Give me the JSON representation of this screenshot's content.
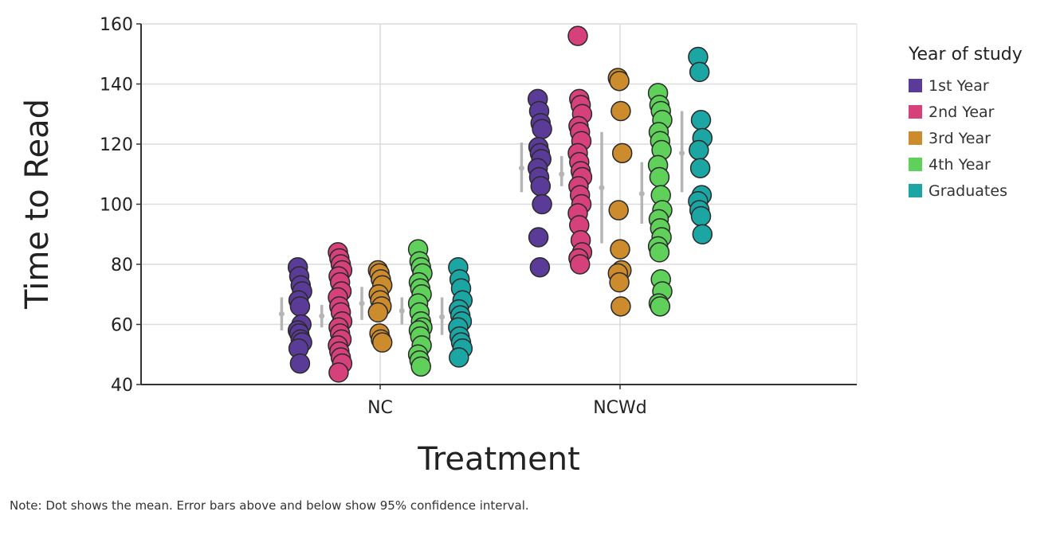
{
  "chart_data": {
    "type": "scatter",
    "subtype": "categorical strip plot with mean and 95% CI error bars",
    "xlabel": "Treatment",
    "ylabel": "Time to Read",
    "categories": [
      "NC",
      "NCWd"
    ],
    "ylim": [
      40,
      160
    ],
    "yticks": [
      40,
      60,
      80,
      100,
      120,
      140,
      160
    ],
    "grid": true,
    "legend": {
      "title": "Year of study",
      "placement": "right"
    },
    "series": [
      {
        "name": "1st Year",
        "color": "#5b3b98",
        "values": {
          "NC": [
            79,
            76,
            73,
            71,
            68,
            66,
            60,
            58,
            57,
            55,
            54,
            52,
            47
          ],
          "NCWd": [
            135,
            131,
            127,
            125,
            119,
            117,
            115,
            112,
            109,
            106,
            100,
            89,
            79
          ]
        },
        "mean": {
          "NC": 63.5,
          "NCWd": 112
        },
        "ci": {
          "NC": [
            58,
            69
          ],
          "NCWd": [
            104,
            120.5
          ]
        }
      },
      {
        "name": "2nd Year",
        "color": "#d7417b",
        "values": {
          "NC": [
            84,
            82,
            80,
            78,
            76,
            74,
            71,
            69,
            66,
            64,
            61,
            59,
            57,
            55,
            53,
            51,
            49,
            47,
            44
          ],
          "NCWd": [
            156,
            135,
            133,
            130,
            126,
            124,
            121,
            117,
            114,
            111,
            109,
            106,
            103,
            100,
            97,
            93,
            88,
            84,
            82,
            80
          ]
        },
        "mean": {
          "NC": 62.8,
          "NCWd": 110
        },
        "ci": {
          "NC": [
            59,
            66.5
          ],
          "NCWd": [
            106,
            116
          ]
        }
      },
      {
        "name": "3rd Year",
        "color": "#cc8c2e",
        "values": {
          "NC": [
            78,
            77,
            75,
            73,
            70,
            68,
            66,
            64,
            57,
            55,
            54
          ],
          "NCWd": [
            142,
            141,
            131,
            117,
            98,
            85,
            78,
            77,
            74,
            66
          ]
        },
        "mean": {
          "NC": 67,
          "NCWd": 105.5
        },
        "ci": {
          "NC": [
            61.5,
            72.5
          ],
          "NCWd": [
            87,
            124
          ]
        }
      },
      {
        "name": "4th Year",
        "color": "#5fd05a",
        "values": {
          "NC": [
            85,
            81,
            79,
            77,
            74,
            72,
            70,
            67,
            64,
            61,
            59,
            58,
            56,
            53,
            50,
            48,
            46
          ],
          "NCWd": [
            137,
            133,
            131,
            128,
            124,
            121,
            118,
            113,
            109,
            103,
            98,
            95,
            92,
            89,
            86,
            84,
            75,
            71,
            67,
            66
          ]
        },
        "mean": {
          "NC": 64.5,
          "NCWd": 103.5
        },
        "ci": {
          "NC": [
            60,
            69
          ],
          "NCWd": [
            93.5,
            114
          ]
        }
      },
      {
        "name": "Graduates",
        "color": "#1ba6a4",
        "values": {
          "NC": [
            79,
            75,
            72,
            68,
            65,
            63,
            61,
            59,
            56,
            54,
            52,
            49
          ],
          "NCWd": [
            149,
            144,
            128,
            122,
            118,
            112,
            103,
            101,
            98,
            96,
            90
          ]
        },
        "mean": {
          "NC": 62.5,
          "NCWd": 117
        },
        "ci": {
          "NC": [
            56.5,
            69
          ],
          "NCWd": [
            104,
            131
          ]
        }
      }
    ]
  },
  "note": "Note: Dot shows the mean. Error bars above and below show 95% confidence interval."
}
